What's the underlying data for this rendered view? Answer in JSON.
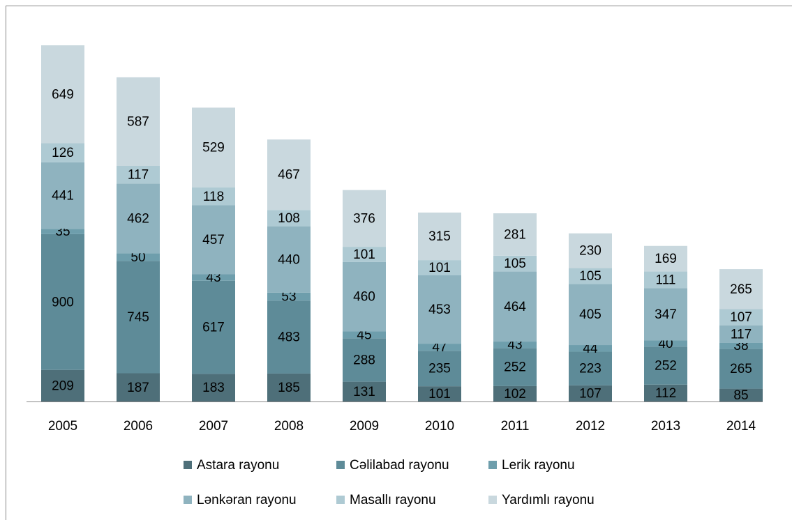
{
  "chart_data": {
    "type": "stacked_bar",
    "categories": [
      "2005",
      "2006",
      "2007",
      "2008",
      "2009",
      "2010",
      "2011",
      "2012",
      "2013",
      "2014"
    ],
    "series": [
      {
        "name": "Astara rayonu",
        "color": "#4e6f79",
        "values": [
          209,
          187,
          183,
          185,
          131,
          101,
          102,
          107,
          112,
          85
        ]
      },
      {
        "name": "Cəlilabad rayonu",
        "color": "#5e8b98",
        "values": [
          900,
          745,
          617,
          483,
          288,
          235,
          252,
          223,
          252,
          265
        ]
      },
      {
        "name": "Lerik rayonu",
        "color": "#6e9eac",
        "values": [
          35,
          50,
          43,
          53,
          45,
          47,
          43,
          44,
          40,
          38
        ]
      },
      {
        "name": "Lənkəran rayonu",
        "color": "#8fb3bf",
        "values": [
          441,
          462,
          457,
          440,
          460,
          453,
          464,
          405,
          347,
          117
        ]
      },
      {
        "name": "Masallı rayonu",
        "color": "#aecad3",
        "values": [
          126,
          117,
          118,
          108,
          101,
          101,
          105,
          105,
          111,
          107
        ]
      },
      {
        "name": "Yardımlı rayonu",
        "color": "#c9d8de",
        "values": [
          649,
          587,
          529,
          467,
          376,
          315,
          281,
          230,
          169,
          265
        ]
      }
    ]
  }
}
